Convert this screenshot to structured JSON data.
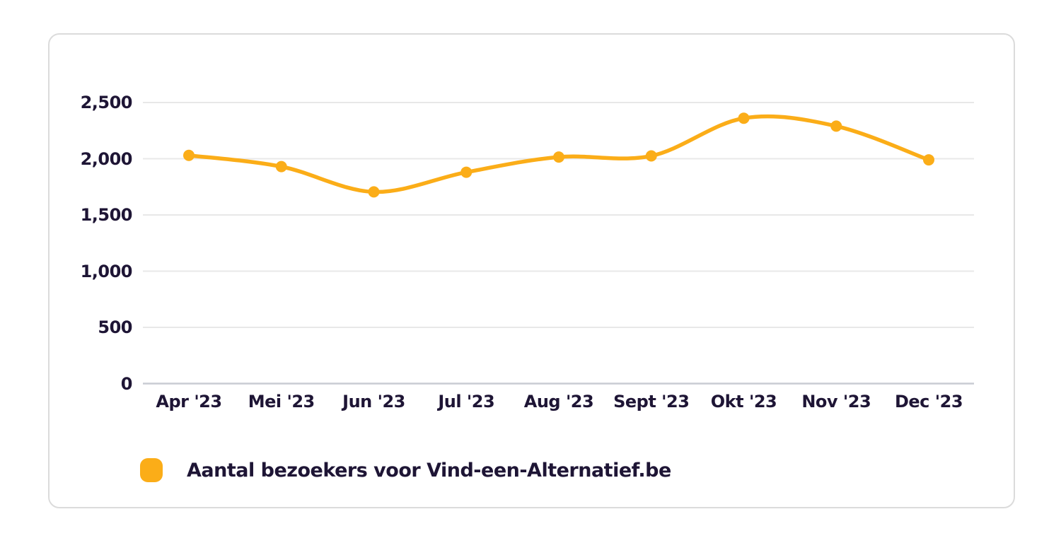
{
  "chart_data": {
    "type": "line",
    "categories": [
      "Apr '23",
      "Mei '23",
      "Jun '23",
      "Jul '23",
      "Aug '23",
      "Sept '23",
      "Okt '23",
      "Nov '23",
      "Dec '23"
    ],
    "series": [
      {
        "name": "Aantal bezoekers voor Vind-een-Alternatief.be",
        "values": [
          2030,
          1930,
          1705,
          1880,
          2015,
          2025,
          2360,
          2290,
          1990
        ]
      }
    ],
    "y_ticks": [
      0,
      500,
      1000,
      1500,
      2000,
      2500
    ],
    "y_tick_labels": [
      "0",
      "500",
      "1,000",
      "1,500",
      "2,000",
      "2,500"
    ],
    "ylim": [
      0,
      2500
    ],
    "xlabel": "",
    "ylabel": "",
    "title": "",
    "grid": true,
    "curve": "smooth",
    "legend_position": "bottom-left",
    "colors": {
      "line": "#FBAD18",
      "point": "#FBAD18",
      "text": "#1E1535",
      "gridline": "#E8E8E8",
      "axis_line": "#C9CCD3",
      "card_border": "#DBDBDB",
      "background": "#FFFFFF"
    }
  },
  "legend": {
    "label": "Aantal bezoekers voor Vind-een-Alternatief.be"
  }
}
